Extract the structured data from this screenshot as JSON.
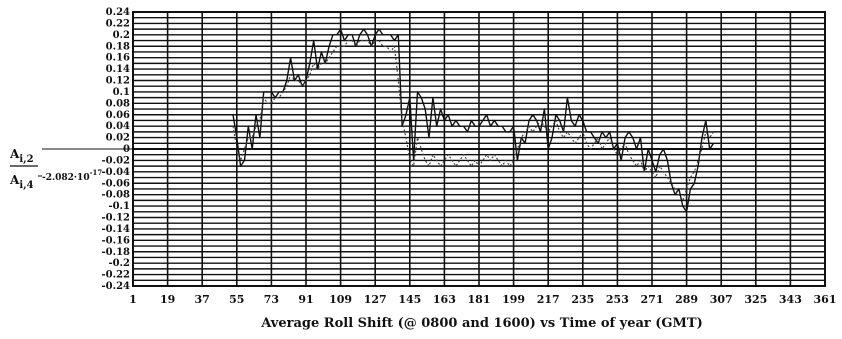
{
  "chart_data": {
    "type": "line",
    "xlabel": "Average Roll Shift (@ 0800 and 1600) vs Time of year (GMT)",
    "ylabel_top": "A",
    "ylabel_top_sub": "i,2",
    "ylabel_bottom": "A",
    "ylabel_bottom_sub": "i,4",
    "y_constant_label": "-2.082·10",
    "y_constant_exp": "-17",
    "xlim": [
      1,
      361
    ],
    "ylim": [
      -0.24,
      0.24
    ],
    "x_ticks": [
      "1",
      "19",
      "37",
      "55",
      "73",
      "91",
      "109",
      "127",
      "145",
      "163",
      "181",
      "199",
      "217",
      "235",
      "253",
      "271",
      "289",
      "307",
      "325",
      "343",
      "361"
    ],
    "y_ticks": [
      "0.24",
      "0.22",
      "0.2",
      "0.18",
      "0.16",
      "0.14",
      "0.12",
      "0.1",
      "0.08",
      "0.06",
      "0.04",
      "0.02",
      "0",
      "-0.02",
      "-0.04",
      "-0.06",
      "-0.08",
      "-0.1",
      "-0.12",
      "-0.14",
      "-0.16",
      "-0.18",
      "-0.2",
      "-0.22",
      "-0.24"
    ],
    "grid": true,
    "series": [
      {
        "style": "solid",
        "color": "#111111",
        "points": [
          [
            53,
            0.06
          ],
          [
            55,
            0.02
          ],
          [
            57,
            -0.03
          ],
          [
            59,
            -0.02
          ],
          [
            61,
            0.04
          ],
          [
            63,
            0.0
          ],
          [
            65,
            0.06
          ],
          [
            67,
            0.02
          ],
          [
            69,
            0.1
          ],
          [
            71,
            0.1
          ],
          [
            73,
            0.1
          ],
          [
            75,
            0.09
          ],
          [
            77,
            0.1
          ],
          [
            79,
            0.1
          ],
          [
            81,
            0.12
          ],
          [
            83,
            0.16
          ],
          [
            85,
            0.12
          ],
          [
            87,
            0.13
          ],
          [
            89,
            0.11
          ],
          [
            91,
            0.12
          ],
          [
            93,
            0.15
          ],
          [
            95,
            0.19
          ],
          [
            97,
            0.14
          ],
          [
            99,
            0.17
          ],
          [
            101,
            0.15
          ],
          [
            103,
            0.18
          ],
          [
            105,
            0.2
          ],
          [
            107,
            0.2
          ],
          [
            109,
            0.21
          ],
          [
            111,
            0.19
          ],
          [
            113,
            0.2
          ],
          [
            115,
            0.2
          ],
          [
            117,
            0.18
          ],
          [
            119,
            0.2
          ],
          [
            121,
            0.21
          ],
          [
            123,
            0.2
          ],
          [
            125,
            0.18
          ],
          [
            127,
            0.2
          ],
          [
            129,
            0.21
          ],
          [
            131,
            0.2
          ],
          [
            133,
            0.2
          ],
          [
            135,
            0.2
          ],
          [
            137,
            0.19
          ],
          [
            139,
            0.2
          ],
          [
            141,
            0.04
          ],
          [
            143,
            0.06
          ],
          [
            145,
            0.09
          ],
          [
            147,
            -0.02
          ],
          [
            149,
            0.1
          ],
          [
            151,
            0.09
          ],
          [
            153,
            0.07
          ],
          [
            155,
            0.02
          ],
          [
            157,
            0.09
          ],
          [
            159,
            0.04
          ],
          [
            161,
            0.07
          ],
          [
            163,
            0.05
          ],
          [
            165,
            0.06
          ],
          [
            167,
            0.04
          ],
          [
            169,
            0.05
          ],
          [
            171,
            0.04
          ],
          [
            173,
            0.04
          ],
          [
            175,
            0.03
          ],
          [
            177,
            0.05
          ],
          [
            179,
            0.04
          ],
          [
            181,
            0.04
          ],
          [
            183,
            0.05
          ],
          [
            185,
            0.06
          ],
          [
            187,
            0.04
          ],
          [
            189,
            0.05
          ],
          [
            191,
            0.04
          ],
          [
            193,
            0.04
          ],
          [
            195,
            0.03
          ],
          [
            197,
            0.03
          ],
          [
            199,
            0.04
          ],
          [
            201,
            -0.02
          ],
          [
            203,
            0.02
          ],
          [
            205,
            0.01
          ],
          [
            207,
            0.05
          ],
          [
            209,
            0.06
          ],
          [
            211,
            0.05
          ],
          [
            213,
            0.03
          ],
          [
            215,
            0.07
          ],
          [
            217,
            0.0
          ],
          [
            219,
            0.02
          ],
          [
            221,
            0.06
          ],
          [
            223,
            0.05
          ],
          [
            225,
            0.03
          ],
          [
            227,
            0.09
          ],
          [
            229,
            0.05
          ],
          [
            231,
            0.04
          ],
          [
            233,
            0.06
          ],
          [
            235,
            0.05
          ],
          [
            237,
            0.03
          ],
          [
            239,
            0.03
          ],
          [
            241,
            0.02
          ],
          [
            243,
            0.01
          ],
          [
            245,
            0.03
          ],
          [
            247,
            0.02
          ],
          [
            249,
            0.03
          ],
          [
            251,
            0.0
          ],
          [
            253,
            0.01
          ],
          [
            255,
            -0.02
          ],
          [
            257,
            0.02
          ],
          [
            259,
            0.03
          ],
          [
            261,
            0.02
          ],
          [
            263,
            0.0
          ],
          [
            265,
            0.02
          ],
          [
            267,
            -0.04
          ],
          [
            269,
            0.0
          ],
          [
            271,
            -0.02
          ],
          [
            273,
            -0.04
          ],
          [
            275,
            -0.01
          ],
          [
            277,
            0.0
          ],
          [
            279,
            -0.02
          ],
          [
            281,
            -0.06
          ],
          [
            283,
            -0.08
          ],
          [
            285,
            -0.07
          ],
          [
            287,
            -0.1
          ],
          [
            289,
            -0.11
          ],
          [
            291,
            -0.07
          ],
          [
            293,
            -0.06
          ],
          [
            295,
            -0.03
          ],
          [
            297,
            0.02
          ],
          [
            299,
            0.05
          ],
          [
            301,
            0.0
          ],
          [
            303,
            0.01
          ]
        ]
      },
      {
        "style": "dotted",
        "color": "#444444",
        "points": [
          [
            53,
            0.04
          ],
          [
            55,
            0.0
          ],
          [
            57,
            -0.02
          ],
          [
            59,
            0.0
          ],
          [
            61,
            0.02
          ],
          [
            63,
            0.02
          ],
          [
            65,
            0.04
          ],
          [
            67,
            0.05
          ],
          [
            69,
            0.09
          ],
          [
            71,
            0.08
          ],
          [
            73,
            0.08
          ],
          [
            75,
            0.09
          ],
          [
            77,
            0.09
          ],
          [
            79,
            0.1
          ],
          [
            81,
            0.11
          ],
          [
            83,
            0.13
          ],
          [
            85,
            0.12
          ],
          [
            87,
            0.12
          ],
          [
            89,
            0.11
          ],
          [
            91,
            0.12
          ],
          [
            93,
            0.13
          ],
          [
            95,
            0.15
          ],
          [
            97,
            0.14
          ],
          [
            99,
            0.15
          ],
          [
            101,
            0.15
          ],
          [
            103,
            0.16
          ],
          [
            105,
            0.17
          ],
          [
            107,
            0.18
          ],
          [
            109,
            0.18
          ],
          [
            111,
            0.18
          ],
          [
            113,
            0.19
          ],
          [
            115,
            0.19
          ],
          [
            117,
            0.18
          ],
          [
            119,
            0.19
          ],
          [
            121,
            0.19
          ],
          [
            123,
            0.19
          ],
          [
            125,
            0.18
          ],
          [
            127,
            0.19
          ],
          [
            129,
            0.19
          ],
          [
            131,
            0.18
          ],
          [
            133,
            0.18
          ],
          [
            135,
            0.17
          ],
          [
            137,
            0.18
          ],
          [
            139,
            0.12
          ],
          [
            141,
            0.05
          ],
          [
            143,
            0.02
          ],
          [
            145,
            -0.02
          ],
          [
            147,
            -0.03
          ],
          [
            149,
            0.02
          ],
          [
            151,
            0.0
          ],
          [
            153,
            -0.02
          ],
          [
            155,
            -0.03
          ],
          [
            157,
            -0.01
          ],
          [
            159,
            -0.02
          ],
          [
            161,
            -0.03
          ],
          [
            163,
            -0.02
          ],
          [
            165,
            -0.01
          ],
          [
            167,
            -0.02
          ],
          [
            169,
            -0.03
          ],
          [
            171,
            -0.02
          ],
          [
            173,
            -0.01
          ],
          [
            175,
            -0.02
          ],
          [
            177,
            -0.03
          ],
          [
            179,
            -0.02
          ],
          [
            181,
            -0.03
          ],
          [
            183,
            -0.02
          ],
          [
            185,
            -0.01
          ],
          [
            187,
            -0.02
          ],
          [
            189,
            -0.01
          ],
          [
            191,
            -0.02
          ],
          [
            193,
            -0.03
          ],
          [
            195,
            -0.02
          ],
          [
            197,
            -0.03
          ],
          [
            199,
            -0.02
          ],
          [
            201,
            0.0
          ],
          [
            203,
            0.02
          ],
          [
            205,
            0.03
          ],
          [
            207,
            0.04
          ],
          [
            209,
            0.03
          ],
          [
            211,
            0.04
          ],
          [
            213,
            0.05
          ],
          [
            215,
            0.04
          ],
          [
            217,
            0.03
          ],
          [
            219,
            0.04
          ],
          [
            221,
            0.05
          ],
          [
            223,
            0.03
          ],
          [
            225,
            0.02
          ],
          [
            227,
            0.03
          ],
          [
            229,
            0.02
          ],
          [
            231,
            0.01
          ],
          [
            233,
            0.02
          ],
          [
            235,
            0.03
          ],
          [
            237,
            0.01
          ],
          [
            239,
            0.0
          ],
          [
            241,
            0.01
          ],
          [
            243,
            0.02
          ],
          [
            245,
            0.0
          ],
          [
            247,
            0.01
          ],
          [
            249,
            0.02
          ],
          [
            251,
            0.0
          ],
          [
            253,
            -0.01
          ],
          [
            255,
            0.0
          ],
          [
            257,
            0.01
          ],
          [
            259,
            -0.01
          ],
          [
            261,
            -0.02
          ],
          [
            263,
            -0.03
          ],
          [
            265,
            -0.02
          ],
          [
            267,
            -0.04
          ],
          [
            269,
            -0.03
          ],
          [
            271,
            -0.04
          ],
          [
            273,
            -0.05
          ],
          [
            275,
            -0.03
          ],
          [
            277,
            -0.04
          ],
          [
            279,
            -0.05
          ],
          [
            281,
            -0.06
          ],
          [
            283,
            -0.07
          ],
          [
            285,
            -0.08
          ],
          [
            287,
            -0.09
          ],
          [
            289,
            -0.07
          ],
          [
            291,
            -0.05
          ],
          [
            293,
            -0.04
          ],
          [
            295,
            -0.02
          ],
          [
            297,
            0.0
          ],
          [
            299,
            0.03
          ],
          [
            301,
            0.02
          ],
          [
            303,
            0.03
          ]
        ]
      }
    ]
  }
}
